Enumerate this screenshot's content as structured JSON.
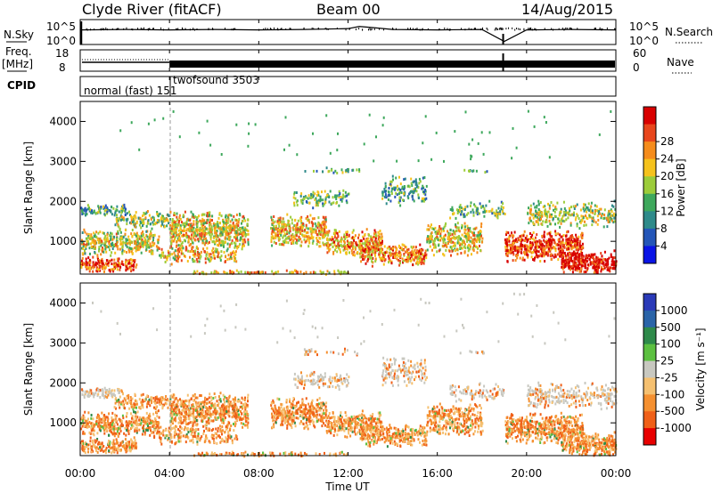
{
  "header": {
    "station": "Clyde River (fitACF)",
    "beam": "Beam 00",
    "date": "14/Aug/2015"
  },
  "chart_data": [
    {
      "type": "line",
      "title": "",
      "left_label": "N.Sky",
      "right_label": "N.Search",
      "ytick_labels_left": [
        "10^5",
        "10^0"
      ],
      "ytick_labels_right": [
        "10^5",
        "10^0"
      ],
      "x": [
        0,
        2,
        4,
        6,
        8,
        10,
        12,
        12.5,
        13,
        14,
        16,
        18,
        19,
        20,
        22,
        24
      ],
      "series": [
        {
          "name": "N.Sky",
          "values": [
            3.0,
            3.1,
            3.0,
            3.1,
            3.0,
            3.1,
            3.3,
            3.8,
            3.6,
            3.1,
            3.0,
            3.1,
            0.3,
            3.0,
            3.1,
            3.0
          ]
        }
      ]
    },
    {
      "type": "line",
      "left_label_line1": "Freq.",
      "left_label_line2": "[MHz]",
      "right_label": "Nave",
      "ytick_labels_left": [
        "18",
        "8"
      ],
      "ytick_labels_right": [
        "60",
        "0"
      ],
      "freq_early_mhz": 12,
      "freq_late_mhz": 11,
      "switch_hour": 4
    },
    {
      "type": "table",
      "label": "CPID",
      "segments": [
        {
          "text": "normal (fast) 151",
          "start_hour": 0
        },
        {
          "text": "twofsound 3503",
          "start_hour": 4
        }
      ]
    },
    {
      "type": "heatmap",
      "ylabel": "Slant Range [km]",
      "xlim_hours": [
        0,
        24
      ],
      "ylim": [
        180,
        4500
      ],
      "yticks": [
        "1000",
        "2000",
        "3000",
        "4000"
      ],
      "colorbar_label": "Power [dB]",
      "colorbar_ticks": [
        "4",
        "8",
        "12",
        "16",
        "20",
        "24",
        "28"
      ],
      "colors": [
        "#0a14e6",
        "#2456b8",
        "#2e8a8a",
        "#3ea85c",
        "#9ccc3a",
        "#f5c21c",
        "#f58c1c",
        "#e8461c",
        "#d80000"
      ]
    },
    {
      "type": "heatmap",
      "ylabel": "Slant Range [km]",
      "xlabel": "Time UT",
      "xtick_labels": [
        "00:00",
        "04:00",
        "08:00",
        "12:00",
        "16:00",
        "20:00",
        "00:00"
      ],
      "xlim_hours": [
        0,
        24
      ],
      "ylim": [
        180,
        4500
      ],
      "yticks": [
        "1000",
        "2000",
        "3000",
        "4000"
      ],
      "colorbar_label": "Velocity [m s⁻¹]",
      "colorbar_ticks": [
        "1000",
        "500",
        "100",
        "25",
        "-25",
        "-100",
        "-500",
        "-1000"
      ],
      "colors": [
        "#2a3ab8",
        "#2a64a8",
        "#2e8a4a",
        "#5cc040",
        "#c8c8c0",
        "#f5c070",
        "#f59030",
        "#f06018",
        "#e80000"
      ]
    }
  ]
}
